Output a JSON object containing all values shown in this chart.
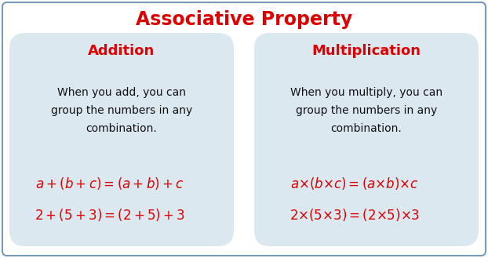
{
  "title": "Associative Property",
  "title_color": "#dd0000",
  "title_fontsize": 17,
  "bg_color": "#ffffff",
  "box_bg_color": "#dce8f0",
  "box_border_color": "#aabfd0",
  "outer_border_color": "#7799bb",
  "left_header": "Addition",
  "right_header": "Multiplication",
  "header_color": "#dd0000",
  "header_fontsize": 13,
  "left_body": "When you add, you can\ngroup the numbers in any\ncombination.",
  "right_body": "When you multiply, you can\ngroup the numbers in any\ncombination.",
  "body_color": "#111111",
  "body_fontsize": 10,
  "left_formula1": "$a+(b+c)=(a+b)+c$",
  "left_formula2": "$2+(5+3)=(2+5)+3$",
  "right_formula1": "$a{\\times}(b{\\times}c)=(a{\\times}b){\\times}c$",
  "right_formula2": "$2{\\times}(5{\\times}3)=(2{\\times}5){\\times}3$",
  "formula_color": "#dd0000",
  "formula_fontsize": 12
}
